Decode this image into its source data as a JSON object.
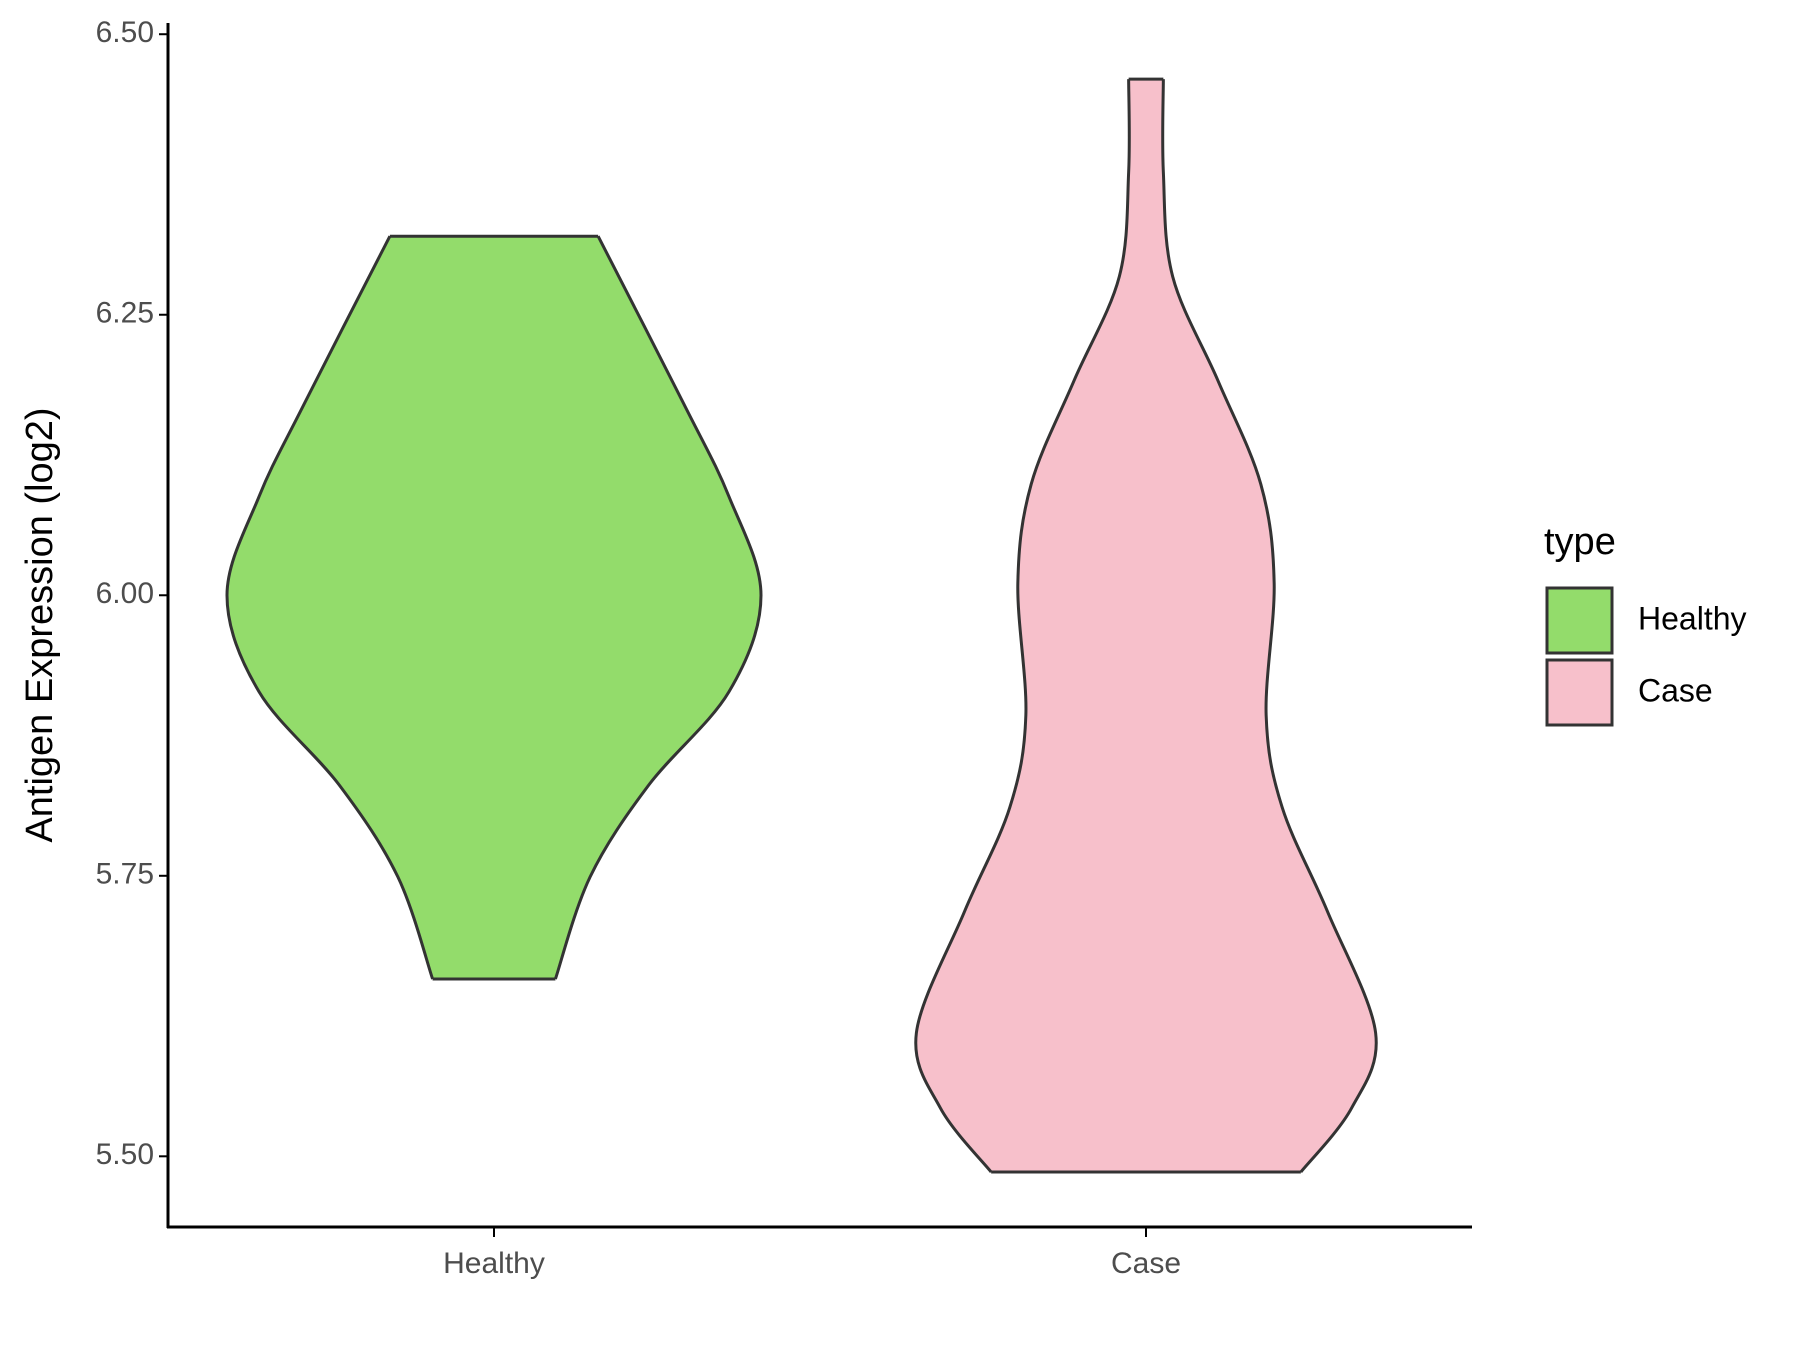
{
  "chart_data": {
    "type": "violin",
    "y_label": "Antigen Expression (log2)",
    "categories": [
      "Healthy",
      "Case"
    ],
    "ylim": [
      5.437,
      6.51
    ],
    "yticks": [
      {
        "value": 5.5,
        "label": "5.50"
      },
      {
        "value": 5.75,
        "label": "5.75"
      },
      {
        "value": 6.0,
        "label": "6.00"
      },
      {
        "value": 6.25,
        "label": "6.25"
      },
      {
        "value": 6.5,
        "label": "6.50"
      }
    ],
    "legend_title": "type",
    "series": [
      {
        "name": "Healthy",
        "color": "#93dc6b",
        "y": [
          6.32,
          6.171,
          6.088,
          6.0,
          5.914,
          5.831,
          5.749,
          5.658
        ],
        "width": [
          0.39,
          0.71,
          0.88,
          1.0,
          0.88,
          0.58,
          0.36,
          0.23
        ]
      },
      {
        "name": "Case",
        "color": "#f7c0cb",
        "y": [
          6.46,
          6.377,
          6.284,
          6.191,
          6.099,
          6.011,
          5.893,
          5.811,
          5.718,
          5.61,
          5.543,
          5.486
        ],
        "width": [
          0.065,
          0.065,
          0.1,
          0.27,
          0.43,
          0.48,
          0.45,
          0.51,
          0.68,
          0.86,
          0.77,
          0.58
        ]
      }
    ]
  }
}
